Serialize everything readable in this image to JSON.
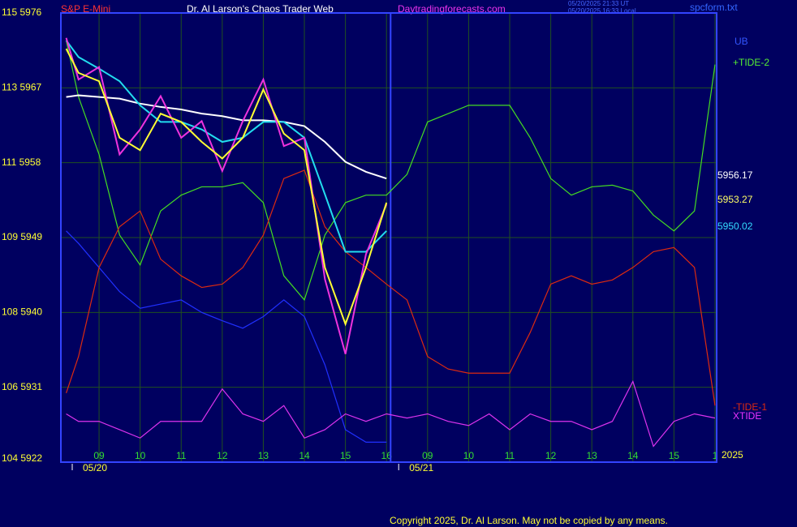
{
  "chart_data": {
    "type": "line",
    "title": "S&P E-Mini",
    "subtitle": "Dr. Al Larson's Chaos Trader Web",
    "website": "Daytradingforecasts.com",
    "timestamp_ut": "05/20/2025 21:33 UT",
    "timestamp_local": "05/20/2025 16:33 Local",
    "file": "spcform.txt",
    "copyright": "Copyright 2025, Dr. Al Larson. May not be copied by any means.",
    "year_label": "2025",
    "date_labels": [
      {
        "text": "05/20",
        "x": -0.1
      },
      {
        "text": "05/21",
        "x": 7.85
      }
    ],
    "day_separator": 7.1,
    "grid": true,
    "xlim": [
      -0.93,
      15.04
    ],
    "xticks": [
      {
        "value": 0,
        "label": "09"
      },
      {
        "value": 1,
        "label": "10"
      },
      {
        "value": 2,
        "label": "11"
      },
      {
        "value": 3,
        "label": "12"
      },
      {
        "value": 4,
        "label": "13"
      },
      {
        "value": 5,
        "label": "14"
      },
      {
        "value": 6,
        "label": "15"
      },
      {
        "value": 7,
        "label": "16"
      },
      {
        "value": 8,
        "label": "09"
      },
      {
        "value": 9,
        "label": "10"
      },
      {
        "value": 10,
        "label": "11"
      },
      {
        "value": 11,
        "label": "12"
      },
      {
        "value": 12,
        "label": "13"
      },
      {
        "value": 13,
        "label": "14"
      },
      {
        "value": 14,
        "label": "15"
      },
      {
        "value": 15,
        "label": "1"
      }
    ],
    "ylim": [
      5922,
      5976
    ],
    "yticks": [
      {
        "value": 5976,
        "label": "115  5976"
      },
      {
        "value": 5967,
        "label": "113  5967"
      },
      {
        "value": 5958,
        "label": "111  5958"
      },
      {
        "value": 5949,
        "label": "109  5949"
      },
      {
        "value": 5940,
        "label": "108  5940"
      },
      {
        "value": 5931,
        "label": "106  5931"
      },
      {
        "value": 5922,
        "label": "104  5922"
      }
    ],
    "x": [
      -0.8,
      -0.5,
      0,
      0.5,
      1,
      1.5,
      2,
      2.5,
      3,
      3.5,
      4,
      4.5,
      5,
      5.5,
      6,
      6.5,
      7,
      7.5,
      8,
      8.5,
      9,
      9.5,
      10,
      10.5,
      11,
      11.5,
      12,
      12.5,
      13,
      13.5,
      14,
      14.5,
      15
    ],
    "series": [
      {
        "name": "UB",
        "color": "#2030ff",
        "values": [
          5949.8,
          5948.3,
          5945.4,
          5942.5,
          5940.5,
          5941.0,
          5941.5,
          5940.0,
          5939.0,
          5938.1,
          5939.5,
          5941.5,
          5939.5,
          5933.7,
          5925.9,
          5924.4,
          5924.4,
          null,
          null,
          null,
          null,
          null,
          null,
          null,
          null,
          null,
          null,
          null,
          null,
          null,
          null,
          null,
          null
        ]
      },
      {
        "name": "+TIDE-2",
        "color": "#44dd22",
        "values": [
          5972.7,
          5965.9,
          5959.0,
          5949.3,
          5945.7,
          5952.2,
          5954.1,
          5955.1,
          5955.1,
          5955.6,
          5953.2,
          5944.4,
          5941.5,
          5949.3,
          5953.2,
          5954.1,
          5954.1,
          5956.6,
          5962.9,
          5963.9,
          5964.9,
          5964.9,
          5964.9,
          5961.0,
          5956.1,
          5954.1,
          5955.1,
          5955.3,
          5954.6,
          5951.7,
          5949.8,
          5952.2,
          5969.8
        ]
      },
      {
        "name": "-TIDE-1",
        "color": "#dd2a10",
        "values": [
          5930.3,
          5934.7,
          5945.4,
          5950.3,
          5952.2,
          5946.4,
          5944.4,
          5943.0,
          5943.4,
          5945.4,
          5949.3,
          5956.1,
          5957.1,
          5950.3,
          5947.3,
          5945.4,
          5943.4,
          5941.5,
          5934.7,
          5933.2,
          5932.7,
          5932.7,
          5932.7,
          5937.6,
          5943.4,
          5944.4,
          5943.4,
          5943.9,
          5945.4,
          5947.3,
          5947.8,
          5945.4,
          5928.8
        ]
      },
      {
        "name": "XTIDE",
        "color": "#dd33ee",
        "values": [
          5927.8,
          5926.9,
          5926.9,
          5925.9,
          5924.9,
          5926.9,
          5926.9,
          5926.9,
          5930.8,
          5927.8,
          5926.9,
          5928.8,
          5924.9,
          5925.9,
          5927.8,
          5926.9,
          5927.8,
          5927.3,
          5927.8,
          5926.9,
          5926.4,
          5927.8,
          5925.9,
          5927.8,
          5926.9,
          5926.9,
          5925.9,
          5926.9,
          5931.7,
          5923.9,
          5926.9,
          5927.8,
          5927.3
        ]
      },
      {
        "color": "#ffffff",
        "values": [
          5965.9,
          5966.1,
          5965.9,
          5965.7,
          5965.1,
          5964.7,
          5964.4,
          5963.9,
          5963.6,
          5963.1,
          5963.1,
          5962.9,
          5962.4,
          5960.5,
          5958.1,
          5956.9,
          5956.1,
          null,
          null,
          null,
          null,
          null,
          null,
          null,
          null,
          null,
          null,
          null,
          null,
          null,
          null,
          null,
          null
        ]
      },
      {
        "color": "#22ddee",
        "values": [
          5972.7,
          5970.7,
          5969.3,
          5967.8,
          5964.9,
          5962.9,
          5962.9,
          5962.0,
          5960.5,
          5961.0,
          5962.9,
          5962.9,
          5961.0,
          5954.2,
          5947.3,
          5947.3,
          5949.8,
          null,
          null,
          null,
          null,
          null,
          null,
          null,
          null,
          null,
          null,
          null,
          null,
          null,
          null,
          null,
          null
        ]
      },
      {
        "color": "#ee33dd",
        "values": [
          5973.0,
          5968.0,
          5969.5,
          5959.0,
          5962.0,
          5966.0,
          5961.0,
          5963.0,
          5957.0,
          5963.0,
          5968.0,
          5960.0,
          5961.0,
          5944.0,
          5935.0,
          5947.0,
          5953.0,
          null,
          null,
          null,
          null,
          null,
          null,
          null,
          null,
          null,
          null,
          null,
          null,
          null,
          null,
          null,
          null
        ]
      },
      {
        "color": "#ffff33",
        "values": [
          5971.7,
          5968.8,
          5967.8,
          5961.0,
          5959.5,
          5963.9,
          5962.9,
          5960.5,
          5958.5,
          5961.0,
          5966.8,
          5961.5,
          5959.5,
          5945.4,
          5938.6,
          5945.4,
          5953.2,
          null,
          null,
          null,
          null,
          null,
          null,
          null,
          null,
          null,
          null,
          null,
          null,
          null,
          null,
          null,
          null
        ]
      }
    ],
    "annotations": [
      {
        "text": "UB",
        "color": "#3355ff"
      },
      {
        "text": "+TIDE-2",
        "color": "#55ee33"
      },
      {
        "text": "5956.17",
        "color": "#ffffff"
      },
      {
        "text": "5953.27",
        "color": "#ffff66"
      },
      {
        "text": "5950.02",
        "color": "#33ddff"
      },
      {
        "text": "-TIDE-1",
        "color": "#dd2a10"
      },
      {
        "text": "XTIDE",
        "color": "#ee33ff"
      }
    ]
  }
}
